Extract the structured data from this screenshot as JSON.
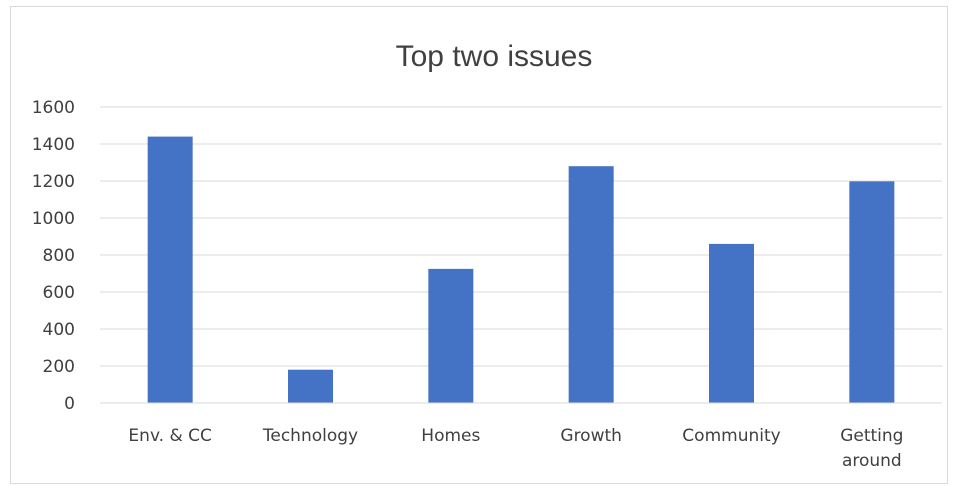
{
  "chart_data": {
    "type": "bar",
    "title": "Top two issues",
    "xlabel": "",
    "ylabel": "",
    "categories": [
      [
        "Env. & CC"
      ],
      [
        "Technology"
      ],
      [
        "Homes"
      ],
      [
        "Growth"
      ],
      [
        "Community"
      ],
      [
        "Getting",
        "around"
      ]
    ],
    "values": [
      1440,
      180,
      725,
      1280,
      860,
      1198
    ],
    "ylim": [
      0,
      1600
    ],
    "yticks": [
      0,
      200,
      400,
      600,
      800,
      1000,
      1200,
      1400,
      1600
    ],
    "grid": true,
    "legend": "none",
    "bar_color": "#4472c4",
    "grid_color": "#d9d9d9"
  }
}
